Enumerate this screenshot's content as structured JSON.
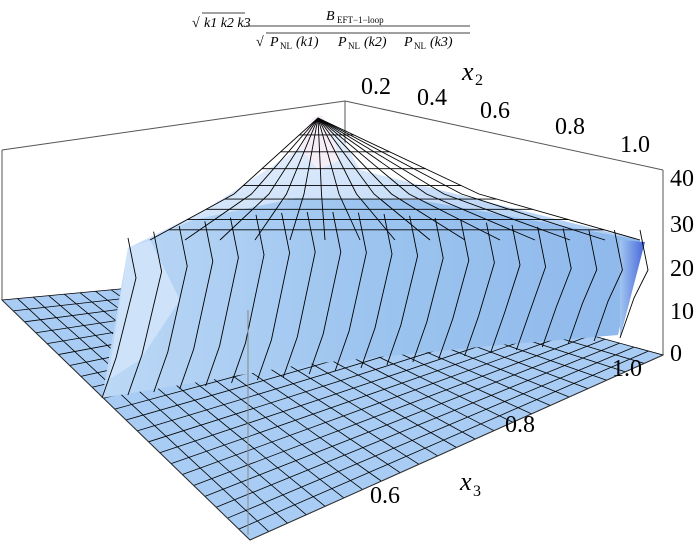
{
  "chart_data": {
    "type": "surface",
    "title": {
      "prefix_radicand": "k1 k2 k3",
      "numerator": "B",
      "numerator_sub": "EFT−1−loop",
      "denominator_sym": "P",
      "denominator_sub": "NL",
      "denominator_args": [
        "(k1)",
        "(k2)",
        "(k3)"
      ]
    },
    "axes": {
      "x2": {
        "label": "x",
        "label_sub": "2",
        "ticks": [
          "0.2",
          "0.4",
          "0.6",
          "0.8",
          "1.0"
        ],
        "range": [
          0.0,
          1.0
        ]
      },
      "x3": {
        "label": "x",
        "label_sub": "3",
        "ticks": [
          "0.6",
          "0.8",
          "1.0"
        ],
        "range": [
          0.5,
          1.0
        ]
      },
      "z": {
        "label": "",
        "ticks": [
          "0",
          "10",
          "20",
          "30",
          "40"
        ],
        "range": [
          0,
          40
        ]
      }
    },
    "surface": {
      "description_of_region": "non-zero only where x3 >= x2 and x2 + x3 >= 1; zero elsewhere",
      "approx_values": [
        {
          "x2": 0.05,
          "x3": 0.95,
          "z": 5
        },
        {
          "x2": 0.2,
          "x3": 0.8,
          "z": 20
        },
        {
          "x2": 0.5,
          "x3": 0.5,
          "z": 27
        },
        {
          "x2": 0.5,
          "x3": 0.75,
          "z": 25
        },
        {
          "x2": 0.5,
          "x3": 1.0,
          "z": 24
        },
        {
          "x2": 1.0,
          "x3": 1.0,
          "z": 26
        },
        {
          "x2": 0.02,
          "x3": 1.0,
          "z": 40
        }
      ]
    },
    "colors": {
      "surface": "#a9cdf4",
      "highlight": "#f4ecf6",
      "edge_dark": "#4a6ee0",
      "mesh": "#000000"
    }
  }
}
